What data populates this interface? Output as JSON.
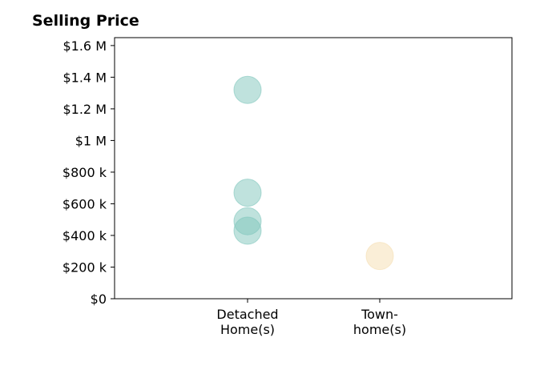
{
  "chart_data": {
    "type": "scatter",
    "title": "Selling Price",
    "xlabel": "",
    "ylabel": "",
    "categories": [
      [
        "Detached",
        "Home(s)"
      ],
      [
        "Town-",
        "home(s)"
      ]
    ],
    "ylim": [
      0,
      1650000
    ],
    "yticks": [
      0,
      200000,
      400000,
      600000,
      800000,
      1000000,
      1200000,
      1400000,
      1600000
    ],
    "ytick_labels": [
      "$0",
      "$200 k",
      "$400 k",
      "$600 k",
      "$800 k",
      "$1 M",
      "$1.2 M",
      "$1.4 M",
      "$1.6 M"
    ],
    "grid": false,
    "series": [
      {
        "category": 0,
        "color": "#7fc6bc",
        "values": [
          1320000,
          670000,
          490000,
          430000
        ]
      },
      {
        "category": 1,
        "color": "#f5deb0",
        "values": [
          270000
        ]
      }
    ]
  }
}
